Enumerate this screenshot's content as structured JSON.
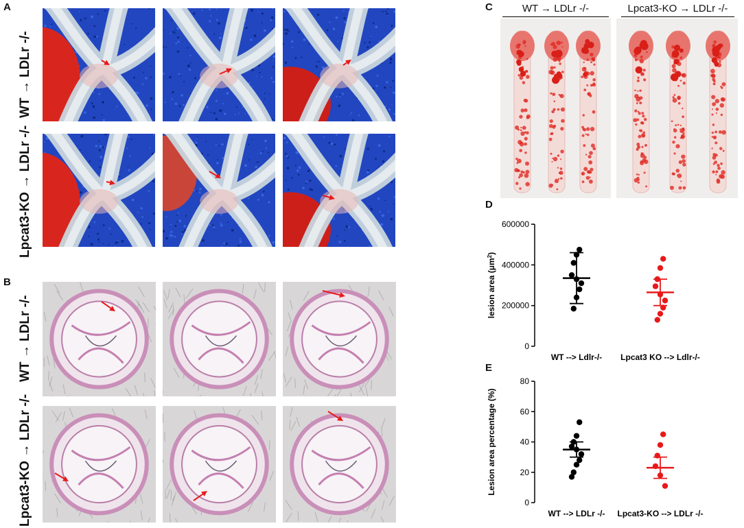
{
  "panels": {
    "A": {
      "letter": "A",
      "row_labels": [
        "WT → LDLr -/-",
        "Lpcat3-KO → LDLr -/-"
      ]
    },
    "B": {
      "letter": "B",
      "row_labels": [
        "WT → LDLr -/-",
        "Lpcat3-KO → LDLr -/-"
      ]
    },
    "C": {
      "letter": "C",
      "col_labels": [
        "WT → LDLr -/-",
        "Lpcat3-KO → LDLr -/-"
      ]
    },
    "D": {
      "letter": "D"
    },
    "E": {
      "letter": "E"
    }
  },
  "colors": {
    "wt": "#000000",
    "ko": "#e8191a",
    "arrow": "#e8191a"
  },
  "chart_data": [
    {
      "type": "scatter",
      "panel": "D",
      "ylabel": "lesion area (μm²)",
      "ylim": [
        0,
        600000
      ],
      "yticks": [
        "0",
        "200000",
        "400000",
        "600000"
      ],
      "categories": [
        "WT --> Ldlr-/-",
        "Lpcat3 KO --> Ldlr-/-"
      ],
      "series": [
        {
          "name": "WT --> Ldlr-/-",
          "color": "#000000",
          "points": [
            475000,
            450000,
            410000,
            350000,
            330000,
            310000,
            280000,
            240000,
            185000
          ],
          "mean": 335000,
          "err_low": 210000,
          "err_high": 460000
        },
        {
          "name": "Lpcat3 KO --> Ldlr-/-",
          "color": "#e8191a",
          "points": [
            430000,
            385000,
            330000,
            295000,
            255000,
            225000,
            190000,
            160000,
            130000
          ],
          "mean": 265000,
          "err_low": 200000,
          "err_high": 330000
        }
      ]
    },
    {
      "type": "scatter",
      "panel": "E",
      "ylabel": "Lesion area percentage (%)",
      "ylim": [
        0,
        80
      ],
      "yticks": [
        "0",
        "20",
        "40",
        "60",
        "80"
      ],
      "categories": [
        "WT --> LDLr -/-",
        "Lpcat3-KO --> LDLr -/-"
      ],
      "series": [
        {
          "name": "WT --> LDLr -/-",
          "color": "#000000",
          "points": [
            53,
            44,
            40,
            37,
            35,
            32,
            28,
            25,
            20,
            17
          ],
          "mean": 35,
          "err_low": 30,
          "err_high": 40
        },
        {
          "name": "Lpcat3-KO --> LDLr -/-",
          "color": "#e8191a",
          "points": [
            45,
            38,
            31,
            24,
            18,
            11
          ],
          "mean": 23,
          "err_low": 16,
          "err_high": 30
        }
      ]
    }
  ]
}
